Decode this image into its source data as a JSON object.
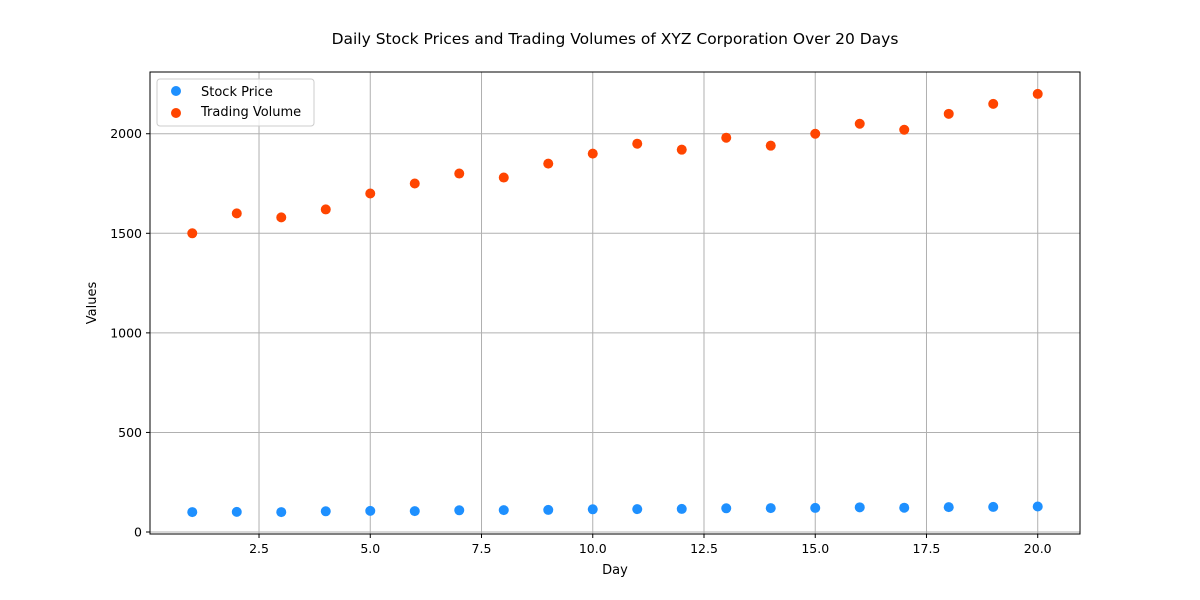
{
  "chart_data": {
    "type": "scatter",
    "title": "Daily Stock Prices and Trading Volumes of XYZ Corporation Over 20 Days",
    "xlabel": "Day",
    "ylabel": "Values",
    "xlim": [
      0.05,
      20.95
    ],
    "ylim": [
      -10,
      2310
    ],
    "x_ticks": [
      2.5,
      5.0,
      7.5,
      10.0,
      12.5,
      15.0,
      17.5,
      20.0
    ],
    "x_tick_labels": [
      "2.5",
      "5.0",
      "7.5",
      "10.0",
      "12.5",
      "15.0",
      "17.5",
      "20.0"
    ],
    "y_ticks": [
      0,
      500,
      1000,
      1500,
      2000
    ],
    "y_tick_labels": [
      "0",
      "500",
      "1000",
      "1500",
      "2000"
    ],
    "grid": true,
    "legend_position": "top-left",
    "x": [
      1,
      2,
      3,
      4,
      5,
      6,
      7,
      8,
      9,
      10,
      11,
      12,
      13,
      14,
      15,
      16,
      17,
      18,
      19,
      20
    ],
    "series": [
      {
        "name": "Stock Price",
        "color": "#1e90ff",
        "values": [
          100,
          101,
          100,
          104,
          106,
          105,
          109,
          110,
          111,
          114,
          115,
          116,
          119,
          120,
          121,
          124,
          122,
          125,
          126,
          128
        ]
      },
      {
        "name": "Trading Volume",
        "color": "#ff4500",
        "values": [
          1500,
          1600,
          1580,
          1620,
          1700,
          1750,
          1800,
          1780,
          1850,
          1900,
          1950,
          1920,
          1980,
          1940,
          2000,
          2050,
          2020,
          2100,
          2150,
          2200
        ]
      }
    ]
  }
}
